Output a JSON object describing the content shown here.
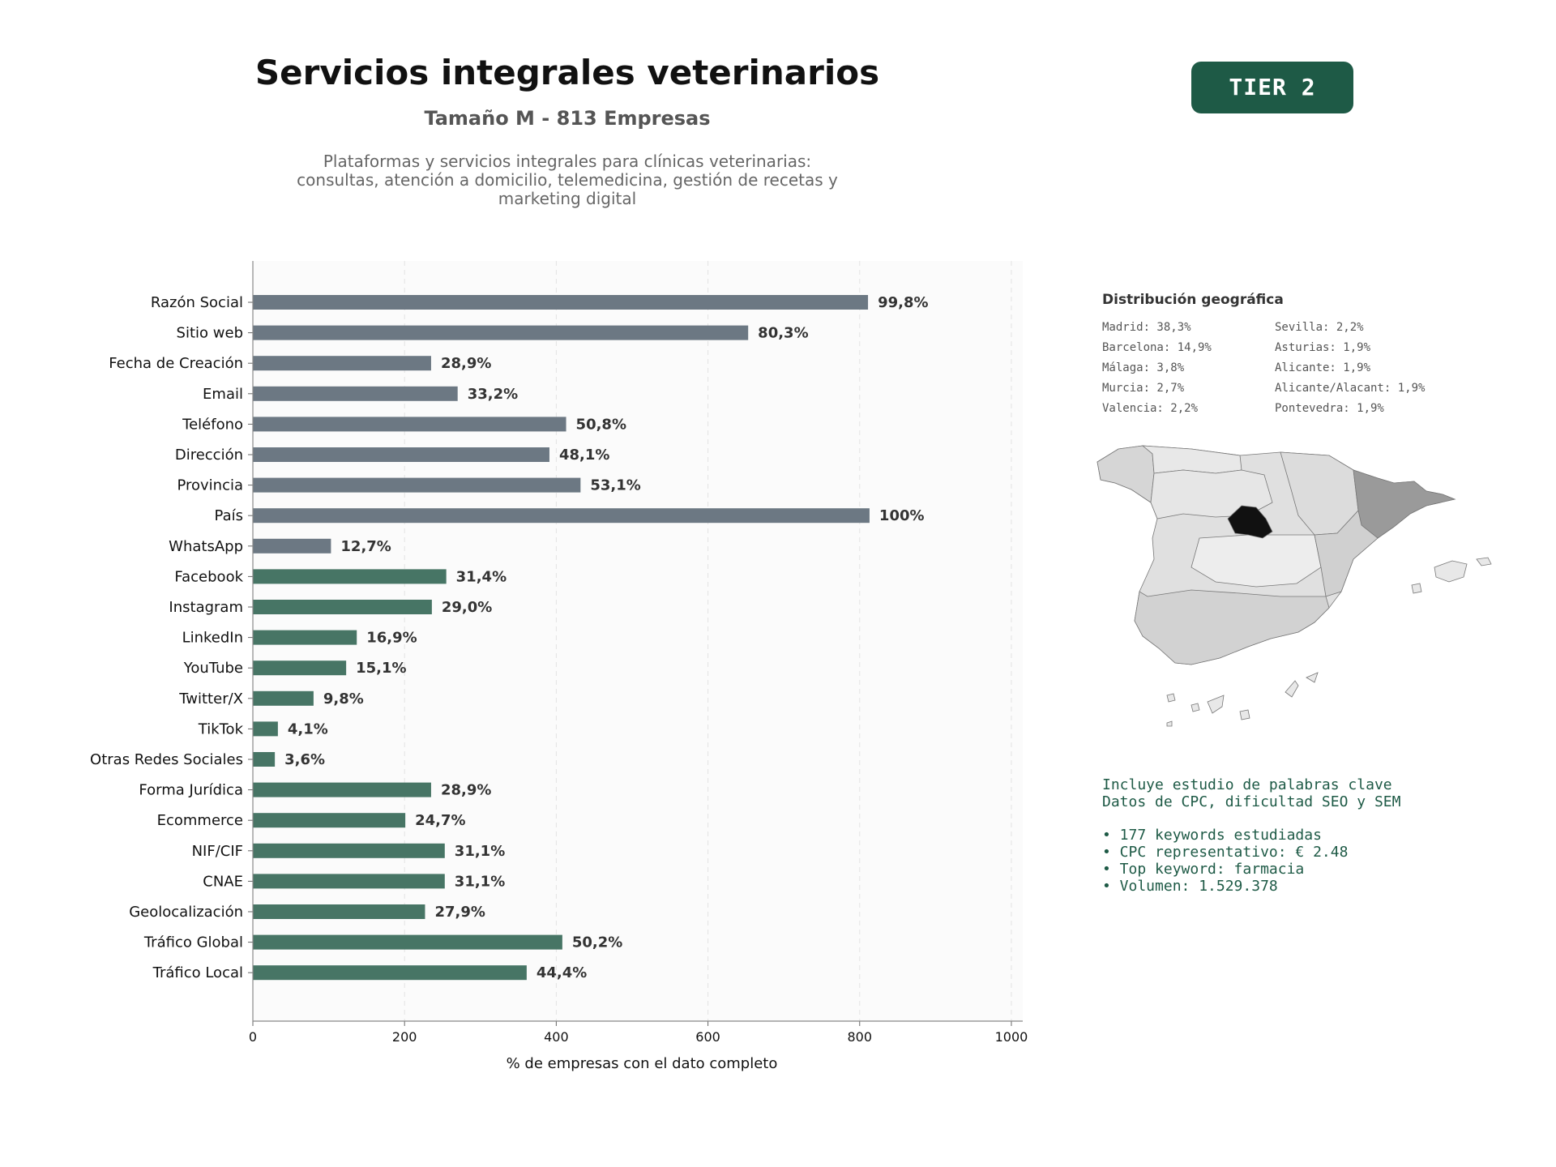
{
  "header": {
    "title": "Servicios integrales veterinarios",
    "subtitle": "Tamaño M - 813 Empresas",
    "description": "Plataformas y servicios integrales para clínicas veterinarias: consultas, atención a domicilio, telemedicina, gestión de recetas y marketing digital",
    "badge": "TIER 2"
  },
  "colors": {
    "gray_bar": "#6c7883",
    "green_bar": "#477565",
    "accent": "#1e5a46",
    "background_plot": "#fbfbfb"
  },
  "chart_data": {
    "type": "bar",
    "orientation": "horizontal",
    "categories": [
      "Razón Social",
      "Sitio web",
      "Fecha de Creación",
      "Email",
      "Teléfono",
      "Dirección",
      "Provincia",
      "País",
      "WhatsApp",
      "Facebook",
      "Instagram",
      "LinkedIn",
      "YouTube",
      "Twitter/X",
      "TikTok",
      "Otras Redes Sociales",
      "Forma Jurídica",
      "Ecommerce",
      "NIF/CIF",
      "CNAE",
      "Geolocalización",
      "Tráfico Global",
      "Tráfico Local"
    ],
    "values": [
      811,
      653,
      235,
      270,
      413,
      391,
      432,
      813,
      103,
      255,
      236,
      137,
      123,
      80,
      33,
      29,
      235,
      201,
      253,
      253,
      227,
      408,
      361
    ],
    "labels": [
      "99,8%",
      "80,3%",
      "28,9%",
      "33,2%",
      "50,8%",
      "48,1%",
      "53,1%",
      "100%",
      "12,7%",
      "31,4%",
      "29,0%",
      "16,9%",
      "15,1%",
      "9,8%",
      "4,1%",
      "3,6%",
      "28,9%",
      "24,7%",
      "31,1%",
      "31,1%",
      "27,9%",
      "50,2%",
      "44,4%"
    ],
    "groups": [
      "gray",
      "gray",
      "gray",
      "gray",
      "gray",
      "gray",
      "gray",
      "gray",
      "gray",
      "green",
      "green",
      "green",
      "green",
      "green",
      "green",
      "green",
      "green",
      "green",
      "green",
      "green",
      "green",
      "green",
      "green"
    ],
    "xlabel": "% de empresas con el dato completo",
    "xlim": [
      0,
      1015
    ],
    "xticks": [
      "0",
      "200",
      "400",
      "600",
      "800",
      "1000"
    ],
    "grid": "vertical dashed",
    "legend": "none"
  },
  "geo": {
    "title": "Distribución geográfica",
    "left": [
      "Madrid: 38,3%",
      "Barcelona: 14,9%",
      "Málaga: 3,8%",
      "Murcia: 2,7%",
      "Valencia: 2,2%"
    ],
    "right": [
      "Sevilla: 2,2%",
      "Asturias: 1,9%",
      "Alicante: 1,9%",
      "Alicante/Alacant: 1,9%",
      "Pontevedra: 1,9%"
    ]
  },
  "keywords": {
    "intro1": "Incluye estudio de palabras clave",
    "intro2": "Datos de CPC, dificultad SEO y SEM",
    "items": [
      "• 177 keywords estudiadas",
      "• CPC representativo: € 2.48",
      "• Top keyword: farmacia",
      "• Volumen: 1.529.378"
    ]
  }
}
